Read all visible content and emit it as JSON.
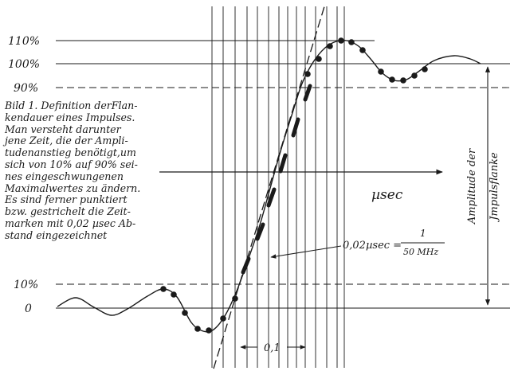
{
  "figure": {
    "levels": {
      "l110": "110%",
      "l100": "100%",
      "l90": "90%",
      "l10": "10%",
      "l0": "0"
    },
    "axis_unit": "µsec",
    "interval_label": "0,1",
    "annotation": {
      "value": "0,02µsec =",
      "numerator": "1",
      "denominator": "50 MHz"
    },
    "amplitude_label": [
      "Amplitude der",
      "Jmpulsflanke"
    ],
    "caption": [
      "Bild 1. Definition derFlan-",
      "kendauer eines Impulses.",
      "Man versteht darunter",
      "jene Zeit, die der Ampli-",
      "tudenanstieg benötigt,um",
      "sich von 10% auf 90% sei-",
      "nes eingeschwungenen",
      "Maximalwertes zu ändern.",
      "Es sind ferner punktiert",
      "bzw. gestrichelt die Zeit-",
      "marken mit 0,02 µsec Ab-",
      "stand eingezeichnet"
    ],
    "colors": {
      "ink": "#1a1a1a",
      "paper": "#ffffff"
    }
  }
}
